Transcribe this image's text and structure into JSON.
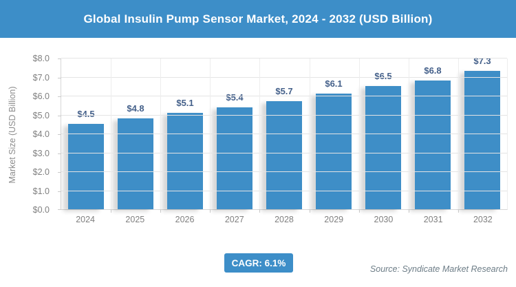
{
  "header": {
    "title": "Global Insulin Pump Sensor Market, 2024 - 2032 (USD Billion)"
  },
  "chart_data": {
    "type": "bar",
    "title": "Global Insulin Pump Sensor Market, 2024 - 2032 (USD Billion)",
    "categories": [
      "2024",
      "2025",
      "2026",
      "2027",
      "2028",
      "2029",
      "2030",
      "2031",
      "2032"
    ],
    "values": [
      4.5,
      4.8,
      5.1,
      5.4,
      5.7,
      6.1,
      6.5,
      6.8,
      7.3
    ],
    "data_labels": [
      "$4.5",
      "$4.8",
      "$5.1",
      "$5.4",
      "$5.7",
      "$6.1",
      "$6.5",
      "$6.8",
      "$7.3"
    ],
    "xlabel": "",
    "ylabel": "Market Size (USD Billion)",
    "ylim": [
      0,
      8
    ],
    "ytick_step": 1,
    "ytick_labels": [
      "$0.0",
      "$1.0",
      "$2.0",
      "$3.0",
      "$4.0",
      "$5.0",
      "$6.0",
      "$7.0",
      "$8.0"
    ],
    "grid": true,
    "legend": "none",
    "colors": {
      "bar": "#3e8ec7",
      "data_label": "#44608a",
      "header_bg": "#3d8ec8",
      "axis_text": "#7f7f7f"
    }
  },
  "footer": {
    "cagr_label": "CAGR: 6.1%",
    "source": "Source: Syndicate Market Research",
    "badge_bg": "#3d8ec8"
  }
}
